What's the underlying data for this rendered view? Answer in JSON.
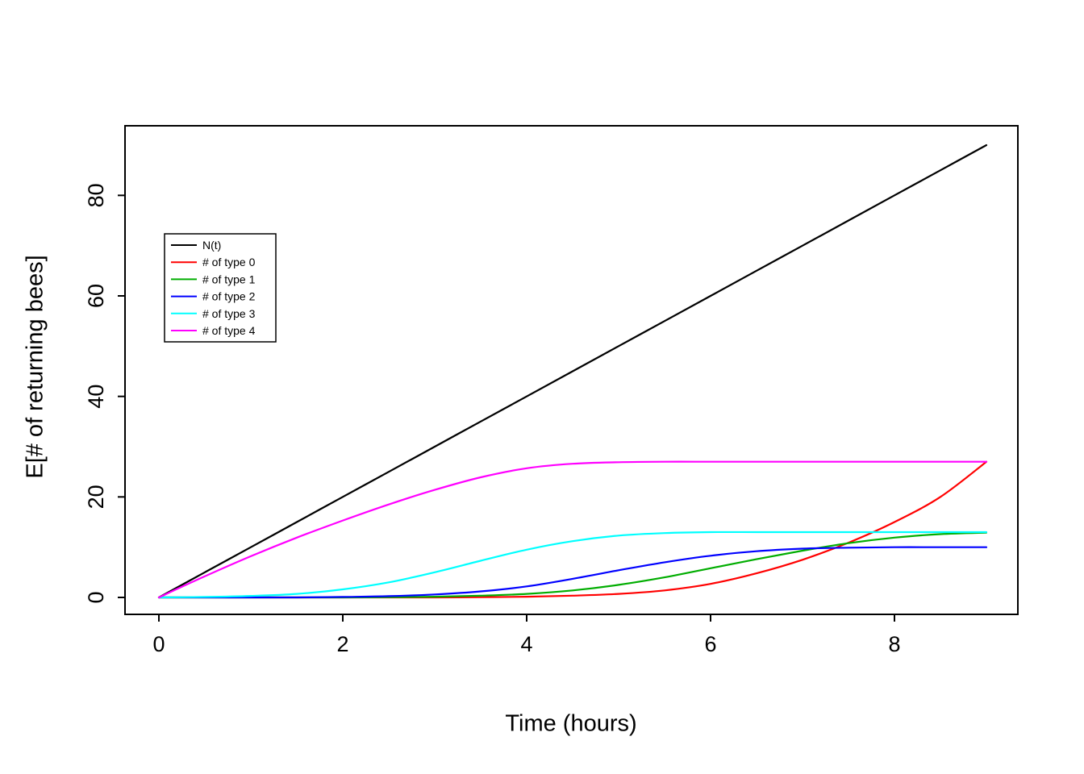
{
  "chart_data": {
    "type": "line",
    "title": "",
    "xlabel": "Time (hours)",
    "ylabel": "E[# of returning bees]",
    "xlim": [
      0,
      9
    ],
    "ylim": [
      0,
      90
    ],
    "xticks": [
      0,
      2,
      4,
      6,
      8
    ],
    "yticks": [
      0,
      20,
      40,
      60,
      80
    ],
    "grid": false,
    "legend_position": "top-left",
    "background": "#ffffff",
    "axis_color": "#000000",
    "x": [
      0,
      0.5,
      1,
      1.5,
      2,
      2.5,
      3,
      3.5,
      4,
      4.5,
      5,
      5.5,
      6,
      6.5,
      7,
      7.5,
      8,
      8.5,
      9
    ],
    "series": [
      {
        "name": "N(t)",
        "color": "#000000",
        "values": [
          0,
          5,
          10,
          15,
          20,
          25,
          30,
          35,
          40,
          45,
          50,
          55,
          60,
          65,
          70,
          75,
          80,
          85,
          90
        ]
      },
      {
        "name": "# of type 0",
        "color": "#ff0000",
        "values": [
          0,
          0,
          0,
          0,
          0,
          0,
          0,
          0.05,
          0.15,
          0.35,
          0.7,
          1.4,
          2.7,
          4.8,
          7.5,
          10.9,
          15,
          20,
          27
        ]
      },
      {
        "name": "# of type 1",
        "color": "#00ad00",
        "values": [
          0,
          0,
          0,
          0,
          0,
          0.05,
          0.15,
          0.35,
          0.7,
          1.4,
          2.5,
          4,
          5.8,
          7.6,
          9.3,
          10.8,
          11.9,
          12.6,
          12.9
        ]
      },
      {
        "name": "# of type 2",
        "color": "#0000ff",
        "values": [
          0,
          0,
          0,
          0,
          0.1,
          0.25,
          0.6,
          1.2,
          2.2,
          3.7,
          5.4,
          7,
          8.3,
          9.2,
          9.7,
          9.9,
          10,
          10,
          10
        ]
      },
      {
        "name": "# of type 3",
        "color": "#00ffff",
        "values": [
          0,
          0.1,
          0.3,
          0.7,
          1.6,
          3,
          5,
          7.3,
          9.5,
          11.2,
          12.3,
          12.8,
          13,
          13,
          13,
          13,
          13,
          13,
          13
        ]
      },
      {
        "name": "# of type 4",
        "color": "#ff00ff",
        "values": [
          0,
          4.2,
          8.2,
          11.9,
          15.3,
          18.5,
          21.4,
          23.9,
          25.7,
          26.6,
          26.9,
          27,
          27,
          27,
          27,
          27,
          27,
          27,
          27
        ]
      }
    ]
  }
}
